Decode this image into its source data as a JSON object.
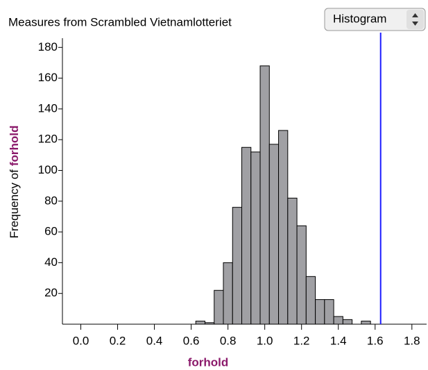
{
  "chart_data": {
    "type": "histogram",
    "title": "Measures from Scrambled Vietnamlotteriet",
    "menu": "Histogram",
    "xlabel": "forhold",
    "ylabel": [
      "Frequency of",
      "forhold"
    ],
    "bins": [
      0.625,
      0.675,
      0.725,
      0.775,
      0.825,
      0.875,
      0.925,
      0.975,
      1.025,
      1.075,
      1.125,
      1.175,
      1.225,
      1.275,
      1.325,
      1.375,
      1.425,
      1.475,
      1.525,
      1.575
    ],
    "values": [
      2,
      1,
      22,
      40,
      76,
      115,
      112,
      168,
      117,
      126,
      82,
      64,
      31,
      16,
      16,
      5,
      3,
      0,
      2
    ],
    "color": "#a0a0a4",
    "reference_line": 1.63,
    "reference_color": "#1a1aff",
    "xlim": [
      -0.1,
      1.88
    ],
    "ylim": [
      0,
      186
    ],
    "xticks": [
      {
        "value": 0,
        "label": "0.0"
      },
      0.2,
      0.4,
      0.6,
      0.8,
      {
        "value": 1,
        "label": "1.0"
      },
      1.2,
      1.4,
      1.6,
      1.8
    ],
    "yticks": [
      20,
      40,
      60,
      80,
      100,
      120,
      140,
      160,
      180
    ]
  }
}
